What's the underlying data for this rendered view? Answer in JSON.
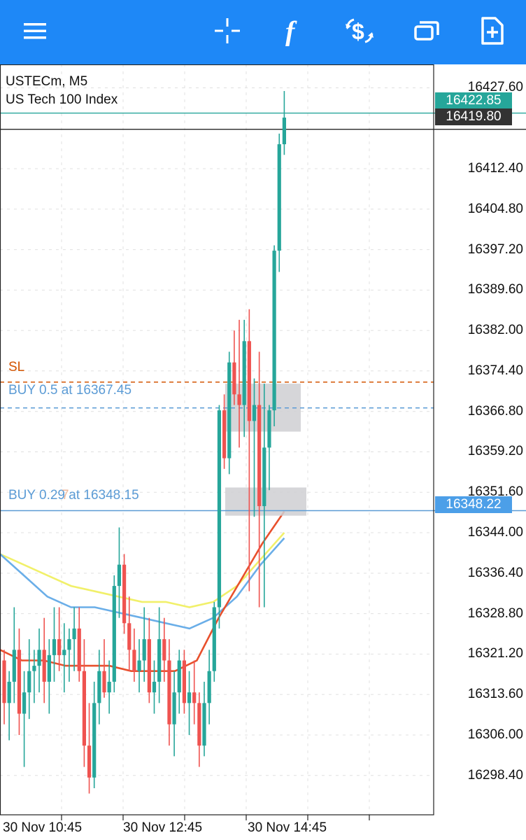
{
  "toolbar": {
    "color": "#1e88f7",
    "buttons": [
      {
        "name": "menu-icon"
      },
      {
        "name": "crosshair-icon"
      },
      {
        "name": "indicators-icon"
      },
      {
        "name": "trade-icon"
      },
      {
        "name": "windows-icon"
      },
      {
        "name": "new-order-icon"
      }
    ]
  },
  "chart": {
    "symbol": "USTECm, M5",
    "description": "US Tech 100 Index",
    "price_axis": [
      "16427.60",
      "16412.40",
      "16404.80",
      "16397.20",
      "16389.60",
      "16382.00",
      "16374.40",
      "16366.80",
      "16359.20",
      "16351.60",
      "16344.00",
      "16336.40",
      "16328.80",
      "16321.20",
      "16313.60",
      "16306.00",
      "16298.40"
    ],
    "ask_price": "16422.85",
    "bid_price": "16419.80",
    "position_price": "16348.22",
    "sl_label": "SL",
    "order1_label": "BUY 0.5 at 16367.45",
    "order2_label": "BUY 0.29 at 16348.15",
    "order2_overlay": "7",
    "time_axis": [
      "30 Nov 10:45",
      "30 Nov 12:45",
      "30 Nov 14:45"
    ],
    "colors": {
      "bull": "#26a69a",
      "bear": "#ef5350",
      "ask": "#26a69a",
      "bid": "#111111",
      "sl": "#d35400",
      "order": "#5b9bd5",
      "ma_yellow": "#f1f06a",
      "ma_blue": "#6aaee8",
      "ma_red": "#e8502c",
      "grid": "#e0e0e0"
    }
  },
  "chart_data": {
    "type": "candlestick",
    "title": "",
    "xlabel": "",
    "ylabel": "",
    "ylim": [
      16291,
      16432
    ],
    "x_ticks": [
      "30 Nov 10:45",
      "30 Nov 12:45",
      "30 Nov 14:45"
    ],
    "candles": [
      [
        16320,
        16322,
        16308,
        16312
      ],
      [
        16312,
        16318,
        16305,
        16316
      ],
      [
        16316,
        16330,
        16312,
        16322
      ],
      [
        16322,
        16326,
        16306,
        16310
      ],
      [
        16310,
        16318,
        16300,
        16314
      ],
      [
        16314,
        16324,
        16309,
        16318
      ],
      [
        16318,
        16322,
        16312,
        16319
      ],
      [
        16319,
        16326,
        16314,
        16322
      ],
      [
        16322,
        16328,
        16312,
        16316
      ],
      [
        16316,
        16324,
        16310,
        16321
      ],
      [
        16321,
        16330,
        16316,
        16324
      ],
      [
        16324,
        16330,
        16318,
        16321
      ],
      [
        16321,
        16327,
        16314,
        16322
      ],
      [
        16322,
        16326,
        16316,
        16324
      ],
      [
        16324,
        16330,
        16318,
        16326
      ],
      [
        16326,
        16330,
        16316,
        16318
      ],
      [
        16318,
        16324,
        16300,
        16304
      ],
      [
        16304,
        16312,
        16295,
        16298
      ],
      [
        16298,
        16316,
        16296,
        16312
      ],
      [
        16312,
        16322,
        16308,
        16318
      ],
      [
        16318,
        16324,
        16313,
        16314
      ],
      [
        16314,
        16320,
        16310,
        16316
      ],
      [
        16316,
        16336,
        16314,
        16334
      ],
      [
        16334,
        16345,
        16328,
        16338
      ],
      [
        16338,
        16340,
        16325,
        16327
      ],
      [
        16327,
        16332,
        16318,
        16322
      ],
      [
        16322,
        16326,
        16316,
        16318
      ],
      [
        16318,
        16324,
        16314,
        16320
      ],
      [
        16320,
        16330,
        16316,
        16324
      ],
      [
        16324,
        16328,
        16312,
        16314
      ],
      [
        16314,
        16320,
        16310,
        16316
      ],
      [
        16316,
        16330,
        16312,
        16324
      ],
      [
        16324,
        16328,
        16316,
        16320
      ],
      [
        16320,
        16324,
        16304,
        16308
      ],
      [
        16308,
        16318,
        16302,
        16314
      ],
      [
        16314,
        16322,
        16310,
        16320
      ],
      [
        16320,
        16322,
        16310,
        16312
      ],
      [
        16312,
        16318,
        16306,
        16314
      ],
      [
        16314,
        16320,
        16308,
        16312
      ],
      [
        16312,
        16314,
        16300,
        16304
      ],
      [
        16304,
        16316,
        16302,
        16312
      ],
      [
        16312,
        16322,
        16308,
        16318
      ],
      [
        16318,
        16331,
        16316,
        16330
      ],
      [
        16330,
        16368,
        16326,
        16367
      ],
      [
        16367,
        16370,
        16356,
        16358
      ],
      [
        16358,
        16378,
        16355,
        16376
      ],
      [
        16376,
        16382,
        16368,
        16370
      ],
      [
        16370,
        16384,
        16360,
        16368
      ],
      [
        16368,
        16384,
        16362,
        16380
      ],
      [
        16380,
        16386,
        16333,
        16365
      ],
      [
        16365,
        16373,
        16347,
        16368
      ],
      [
        16368,
        16378,
        16330,
        16349
      ],
      [
        16349,
        16372,
        16330,
        16360
      ],
      [
        16360,
        16368,
        16352,
        16367
      ],
      [
        16367,
        16398,
        16364,
        16397
      ],
      [
        16397,
        16419,
        16393,
        16417
      ],
      [
        16417,
        16427,
        16415,
        16422
      ]
    ],
    "series": [
      {
        "name": "",
        "color": "#f1f06a",
        "values": [
          16340,
          16338,
          16336,
          16334,
          16333,
          16332,
          16331,
          16331,
          16330,
          16331,
          16334,
          16339,
          16344
        ]
      },
      {
        "name": "",
        "color": "#6aaee8",
        "values": [
          16340,
          16336,
          16332,
          16330,
          16330,
          16329,
          16328,
          16327,
          16326,
          16328,
          16332,
          16338,
          16343
        ]
      },
      {
        "name": "",
        "color": "#e8502c",
        "values": [
          16322,
          16320,
          16320,
          16319,
          16319,
          16319,
          16318,
          16318,
          16318,
          16320,
          16328,
          16335,
          16342,
          16348
        ]
      }
    ],
    "horizontal_lines": [
      {
        "label": "SL",
        "price": 16372.3
      },
      {
        "label": "BUY 0.5 at 16367.45",
        "price": 16367.45
      },
      {
        "label": "BUY 0.29 at 16348.15",
        "price": 16348.15
      },
      {
        "label": "ask",
        "price": 16422.85
      },
      {
        "label": "bid",
        "price": 16419.8
      }
    ]
  }
}
